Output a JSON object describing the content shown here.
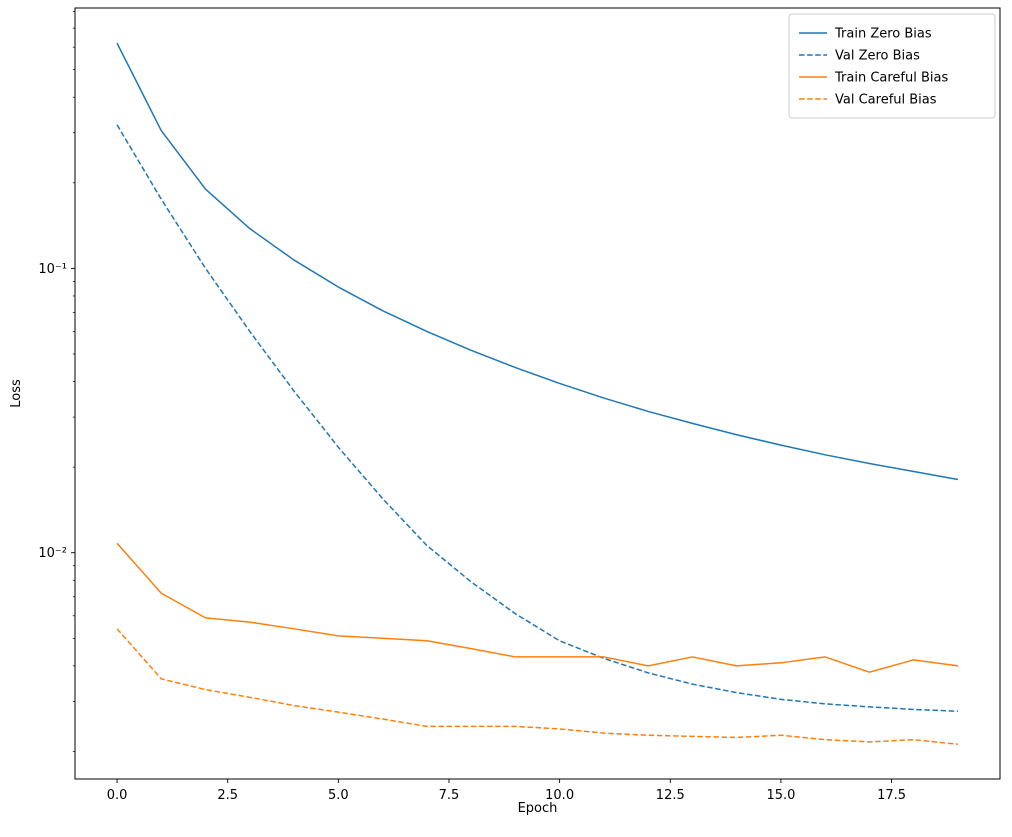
{
  "chart_data": {
    "type": "line",
    "title": "",
    "xlabel": "Epoch",
    "ylabel": "Loss",
    "yscale": "log",
    "grid": false,
    "legend_position": "upper right",
    "xlim": [
      -0.95,
      19.95
    ],
    "ylim": [
      0.0016,
      0.824
    ],
    "xticks": [
      0,
      2.5,
      5,
      7.5,
      10,
      12.5,
      15,
      17.5
    ],
    "xtick_labels": [
      "0.0",
      "2.5",
      "5.0",
      "7.5",
      "10.0",
      "12.5",
      "15.0",
      "17.5"
    ],
    "yticks": [
      0.01,
      0.1
    ],
    "ytick_labels": [
      "10⁻²",
      "10⁻¹"
    ],
    "x": [
      0,
      1,
      2,
      3,
      4,
      5,
      6,
      7,
      8,
      9,
      10,
      11,
      12,
      13,
      14,
      15,
      16,
      17,
      18,
      19
    ],
    "series": [
      {
        "name": "Train Zero Bias",
        "color": "#1f77b4",
        "style": "solid",
        "values": [
          0.62,
          0.305,
          0.19,
          0.138,
          0.107,
          0.086,
          0.071,
          0.06,
          0.0515,
          0.0448,
          0.0394,
          0.035,
          0.0314,
          0.0285,
          0.026,
          0.0239,
          0.0221,
          0.0206,
          0.0193,
          0.0181
        ]
      },
      {
        "name": "Val Zero Bias",
        "color": "#1f77b4",
        "style": "dashed",
        "values": [
          0.32,
          0.175,
          0.1,
          0.06,
          0.037,
          0.0235,
          0.0155,
          0.0106,
          0.0079,
          0.0061,
          0.0049,
          0.00425,
          0.00378,
          0.00345,
          0.00322,
          0.00305,
          0.00294,
          0.00287,
          0.00281,
          0.00277
        ]
      },
      {
        "name": "Train Careful Bias",
        "color": "#ff7f0e",
        "style": "solid",
        "values": [
          0.0108,
          0.0072,
          0.0059,
          0.0057,
          0.0054,
          0.0051,
          0.005,
          0.0049,
          0.0046,
          0.0043,
          0.0043,
          0.0043,
          0.004,
          0.0043,
          0.004,
          0.0041,
          0.0043,
          0.0038,
          0.0042,
          0.004
        ]
      },
      {
        "name": "Val Careful Bias",
        "color": "#ff7f0e",
        "style": "dashed",
        "values": [
          0.0054,
          0.0036,
          0.0033,
          0.0031,
          0.0029,
          0.00275,
          0.0026,
          0.00245,
          0.00245,
          0.00245,
          0.0024,
          0.00232,
          0.00228,
          0.00226,
          0.00224,
          0.00228,
          0.0022,
          0.00216,
          0.0022,
          0.00212
        ]
      }
    ],
    "legend": {
      "entries": [
        "Train Zero Bias",
        "Val Zero Bias",
        "Train Careful Bias",
        "Val Careful Bias"
      ]
    },
    "colors": {
      "blue": "#1f77b4",
      "orange": "#ff7f0e",
      "spine": "#000000",
      "legend_border": "#cccccc",
      "background": "#ffffff"
    }
  }
}
